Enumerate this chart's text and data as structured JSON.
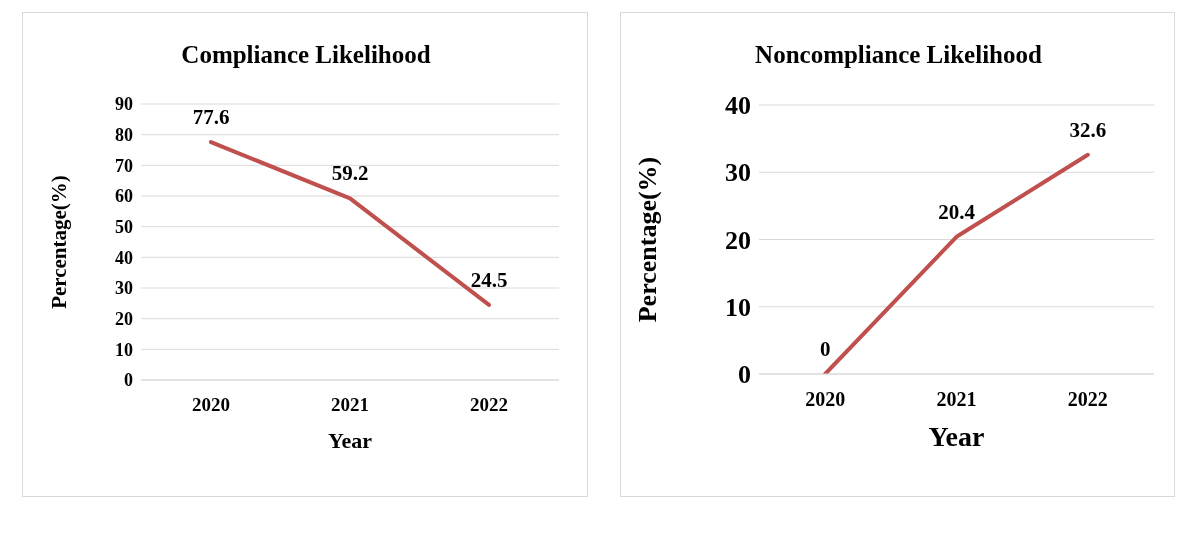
{
  "chart_data": [
    {
      "type": "line",
      "title": "Compliance Likelihood",
      "xlabel": "Year",
      "ylabel": "Percentage(%)",
      "categories": [
        "2020",
        "2021",
        "2022"
      ],
      "series": [
        {
          "color": "#c0504d",
          "values": [
            77.6,
            59.2,
            24.5
          ]
        }
      ],
      "ylim": [
        0,
        90
      ],
      "yticks": [
        0,
        10,
        20,
        30,
        40,
        50,
        60,
        70,
        80,
        90
      ],
      "grid": "y",
      "data_labels": true
    },
    {
      "type": "line",
      "title": "Noncompliance Likelihood",
      "xlabel": "Year",
      "ylabel": "Percentage(%)",
      "categories": [
        "2020",
        "2021",
        "2022"
      ],
      "series": [
        {
          "color": "#c0504d",
          "values": [
            0,
            20.4,
            32.6
          ]
        }
      ],
      "ylim": [
        0,
        40
      ],
      "yticks": [
        0,
        10,
        20,
        30,
        40
      ],
      "grid": "y",
      "data_labels": true
    }
  ]
}
